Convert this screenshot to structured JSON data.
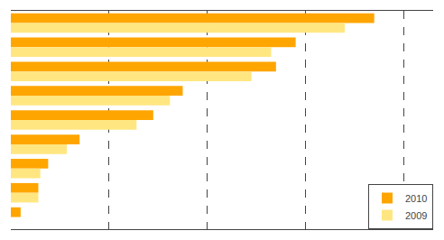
{
  "chart_data": {
    "type": "bar",
    "orientation": "horizontal",
    "categories": [
      null,
      null,
      null,
      null,
      null,
      null,
      null,
      null,
      null
    ],
    "series": [
      {
        "name": "2010",
        "color": "#FFA500",
        "values": [
          370,
          290,
          270,
          175,
          145,
          70,
          38,
          28,
          10
        ]
      },
      {
        "name": "2009",
        "color": "#FFE680",
        "values": [
          340,
          265,
          245,
          162,
          128,
          57,
          30,
          28,
          0
        ]
      }
    ],
    "xlim": [
      0,
      430
    ],
    "xticks": [
      100,
      200,
      300,
      400
    ],
    "grid": true,
    "legend": "lower right",
    "tick_labels": false
  }
}
